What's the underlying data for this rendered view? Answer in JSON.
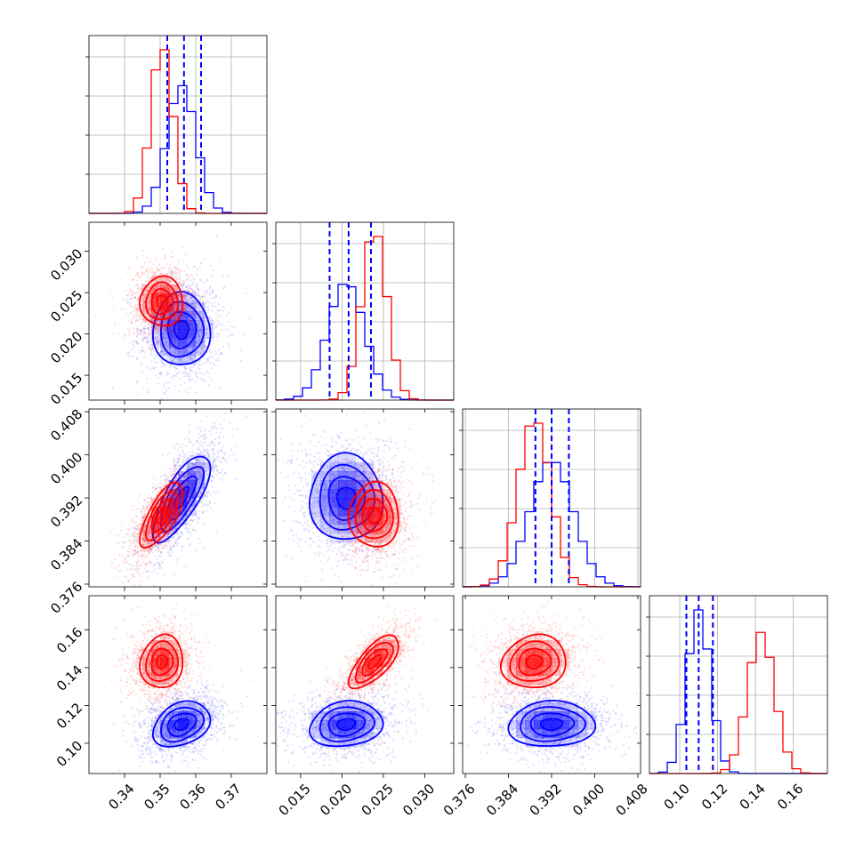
{
  "chart_data": {
    "type": "corner",
    "parameters": [
      {
        "ticks": [
          0.34,
          0.35,
          0.36,
          0.37
        ],
        "tick_labels": [
          "0.34",
          "0.35",
          "0.36",
          "0.37"
        ],
        "range": [
          0.33,
          0.38
        ]
      },
      {
        "ticks": [
          0.015,
          0.02,
          0.025,
          0.03
        ],
        "tick_labels": [
          "0.015",
          "0.020",
          "0.025",
          "0.030"
        ],
        "range": [
          0.012,
          0.0335
        ]
      },
      {
        "ticks": [
          0.376,
          0.384,
          0.392,
          0.4,
          0.408
        ],
        "tick_labels": [
          "0.376",
          "0.384",
          "0.392",
          "0.400",
          "0.408"
        ],
        "range": [
          0.3755,
          0.4085
        ]
      },
      {
        "ticks": [
          0.1,
          0.12,
          0.14,
          0.16
        ],
        "tick_labels": [
          "0.10",
          "0.12",
          "0.14",
          "0.16"
        ],
        "range": [
          0.084,
          0.178
        ]
      }
    ],
    "series": [
      {
        "color": "#0000ff",
        "means": [
          0.356,
          0.0205,
          0.392,
          0.11
        ],
        "sigmas": [
          0.004,
          0.0022,
          0.004,
          0.006
        ],
        "correlations": [
          [
            1,
            0,
            0.75,
            0.3
          ],
          [
            0,
            1,
            0,
            0.15
          ],
          [
            0.75,
            0,
            1,
            0.05
          ],
          [
            0.3,
            0.15,
            0.05,
            1
          ]
        ],
        "quantiles": [
          [
            0.352,
            0.3567,
            0.3615
          ],
          [
            0.0185,
            0.0208,
            0.0235
          ],
          [
            0.389,
            0.392,
            0.3952
          ],
          [
            0.1035,
            0.11,
            0.1175
          ]
        ]
      },
      {
        "color": "#ff0000",
        "means": [
          0.3505,
          0.0239,
          0.3888,
          0.143
        ],
        "sigmas": [
          0.003,
          0.0015,
          0.003,
          0.007
        ],
        "correlations": [
          [
            1,
            0,
            0.7,
            0.1
          ],
          [
            0,
            1,
            0,
            0.7
          ],
          [
            0.7,
            0,
            1,
            0.1
          ],
          [
            0.1,
            0.7,
            0.1,
            1
          ]
        ]
      }
    ]
  }
}
